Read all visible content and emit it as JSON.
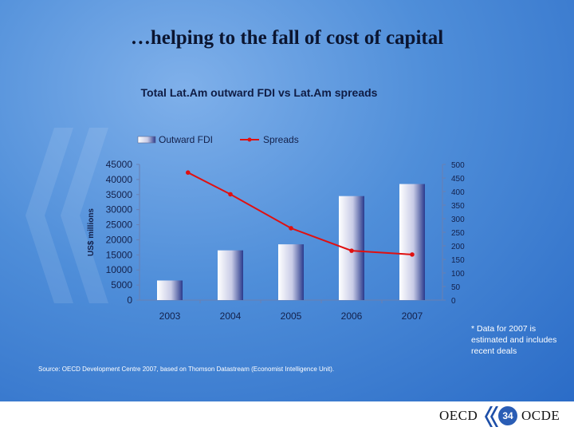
{
  "slide": {
    "title": "…helping to the fall of cost of capital",
    "note": [
      "* Data for 2007 is",
      "estimated and includes",
      "recent deals"
    ],
    "source": "Source: OECD Development Centre 2007, based on Thomson Datastream (Economist Intelligence Unit)."
  },
  "footer": {
    "left_brand": "OECD",
    "right_brand": "OCDE",
    "page_number": "34"
  },
  "chart_data": {
    "type": "bar+line",
    "title": "Total Lat.Am outward FDI vs Lat.Am spreads",
    "categories": [
      "2003",
      "2004",
      "2005",
      "2006",
      "2007"
    ],
    "ylabel": "US$ millions",
    "ylim": [
      0,
      45000
    ],
    "yticks": [
      0,
      5000,
      10000,
      15000,
      20000,
      25000,
      30000,
      35000,
      40000,
      45000
    ],
    "y2lim": [
      0,
      500
    ],
    "y2ticks": [
      0,
      50,
      100,
      150,
      200,
      250,
      300,
      350,
      400,
      450,
      500
    ],
    "legend_position": "top",
    "series": [
      {
        "name": "Outward FDI",
        "type": "bar",
        "axis": "left",
        "color": "#2a3a8c",
        "values": [
          6500,
          16500,
          18500,
          34500,
          38500
        ]
      },
      {
        "name": "Spreads",
        "type": "line",
        "axis": "right",
        "color": "#e01010",
        "values": [
          470,
          390,
          265,
          182,
          168
        ],
        "x_offsets": [
          0.3,
          0,
          0,
          0,
          0
        ]
      }
    ]
  }
}
